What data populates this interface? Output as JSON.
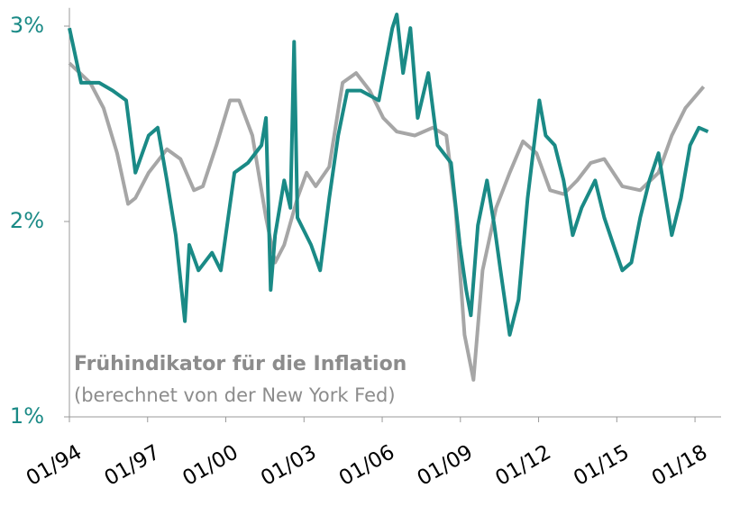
{
  "chart_data": {
    "type": "line",
    "annotations": [
      "(berechnet von der New York Fed)"
    ],
    "series": [
      {
        "color": "#1a8a86",
        "x": [
          1994.0,
          1994.45,
          1995.14,
          1995.66,
          1996.18,
          1996.53,
          1997.04,
          1997.39,
          1997.74,
          1998.08,
          1998.43,
          1998.6,
          1998.95,
          1999.47,
          1999.81,
          2000.33,
          2000.85,
          2001.37,
          2001.54,
          2001.72,
          2001.89,
          2002.24,
          2002.48,
          2002.62,
          2002.75,
          2003.27,
          2003.62,
          2003.97,
          2004.31,
          2004.66,
          2005.18,
          2005.87,
          2006.39,
          2006.56,
          2006.8,
          2007.08,
          2007.36,
          2007.77,
          2008.12,
          2008.64,
          2008.98,
          2009.22,
          2009.4,
          2009.67,
          2010.02,
          2010.3,
          2010.54,
          2010.89,
          2011.23,
          2011.58,
          2012.03,
          2012.27,
          2012.62,
          2012.96,
          2013.31,
          2013.65,
          2014.17,
          2014.52,
          2014.87,
          2015.21,
          2015.56,
          2015.9,
          2016.25,
          2016.6,
          2016.77,
          2017.11,
          2017.46,
          2017.81,
          2018.15,
          2018.5
        ],
        "values": [
          2.99,
          2.71,
          2.71,
          2.67,
          2.62,
          2.25,
          2.44,
          2.48,
          2.21,
          1.93,
          1.49,
          1.88,
          1.75,
          1.84,
          1.75,
          2.25,
          2.3,
          2.39,
          2.53,
          1.65,
          1.93,
          2.21,
          2.07,
          2.92,
          2.02,
          1.88,
          1.75,
          2.12,
          2.44,
          2.67,
          2.67,
          2.62,
          2.99,
          3.06,
          2.76,
          2.99,
          2.53,
          2.76,
          2.39,
          2.3,
          1.88,
          1.65,
          1.52,
          1.98,
          2.21,
          1.98,
          1.75,
          1.42,
          1.6,
          2.12,
          2.62,
          2.44,
          2.39,
          2.21,
          1.93,
          2.07,
          2.21,
          2.02,
          1.88,
          1.75,
          1.79,
          2.02,
          2.21,
          2.35,
          2.21,
          1.93,
          2.12,
          2.39,
          2.48,
          2.46
        ]
      },
      {
        "name": "Frühindikator für die Inflation",
        "color": "#a6a6a6",
        "x": [
          1994.0,
          1994.8,
          1995.31,
          1995.83,
          1996.25,
          1996.53,
          1997.04,
          1997.74,
          1998.26,
          1998.78,
          1999.12,
          1999.64,
          2000.16,
          2000.51,
          2001.02,
          2001.54,
          2001.89,
          2002.24,
          2002.75,
          2003.1,
          2003.45,
          2003.97,
          2004.48,
          2005.0,
          2005.52,
          2006.04,
          2006.56,
          2007.25,
          2007.94,
          2008.46,
          2008.81,
          2009.16,
          2009.5,
          2009.85,
          2010.37,
          2010.89,
          2011.4,
          2011.92,
          2012.44,
          2012.96,
          2013.48,
          2014.0,
          2014.52,
          2015.21,
          2015.9,
          2016.6,
          2017.11,
          2017.63,
          2018.33
        ],
        "values": [
          2.81,
          2.71,
          2.58,
          2.35,
          2.09,
          2.12,
          2.25,
          2.37,
          2.32,
          2.16,
          2.18,
          2.39,
          2.62,
          2.62,
          2.44,
          2.02,
          1.79,
          1.88,
          2.12,
          2.25,
          2.18,
          2.28,
          2.71,
          2.76,
          2.67,
          2.53,
          2.46,
          2.44,
          2.48,
          2.44,
          2.07,
          1.42,
          1.19,
          1.75,
          2.07,
          2.25,
          2.41,
          2.35,
          2.16,
          2.14,
          2.21,
          2.3,
          2.32,
          2.18,
          2.16,
          2.25,
          2.44,
          2.58,
          2.69
        ]
      }
    ],
    "xlim": [
      1994,
      2019
    ],
    "xticks": [
      {
        "value": 1994,
        "label": "01/94"
      },
      {
        "value": 1997,
        "label": "01/97"
      },
      {
        "value": 2000,
        "label": "01/00"
      },
      {
        "value": 2003,
        "label": "01/03"
      },
      {
        "value": 2006,
        "label": "01/06"
      },
      {
        "value": 2009,
        "label": "01/09"
      },
      {
        "value": 2012,
        "label": "01/12"
      },
      {
        "value": 2015,
        "label": "01/15"
      },
      {
        "value": 2018,
        "label": "01/18"
      }
    ],
    "ylim": [
      1,
      3.07
    ],
    "yticks": [
      {
        "value": 1,
        "label": "1%"
      },
      {
        "value": 2,
        "label": "2%"
      },
      {
        "value": 3,
        "label": "3%"
      }
    ]
  }
}
